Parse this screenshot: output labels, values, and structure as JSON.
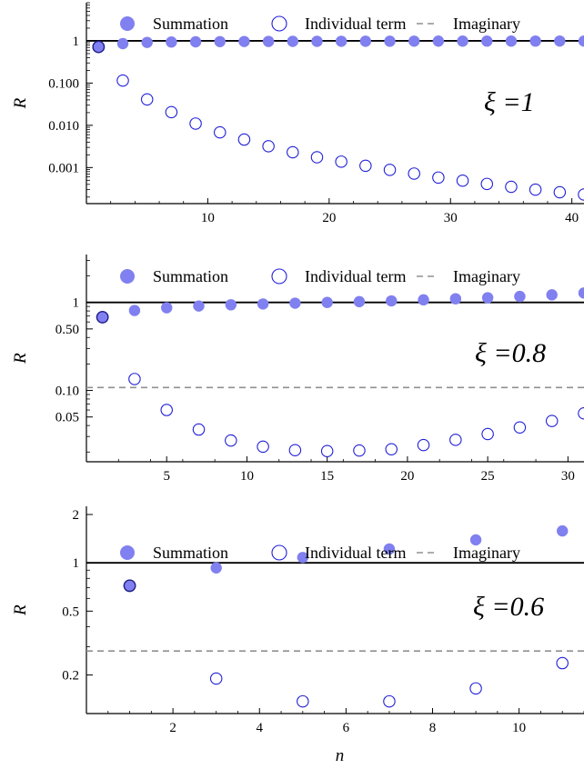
{
  "chart_data": [
    {
      "type": "scatter",
      "title": "",
      "annotation": "ξ =1",
      "xlabel": "",
      "ylabel": "R",
      "yscale": "log",
      "xlim": [
        0,
        41
      ],
      "ylim": [
        0.00014,
        8
      ],
      "x_ticks": [
        10,
        20,
        30,
        40
      ],
      "y_ticks": [
        {
          "value": 1,
          "label": "1"
        },
        {
          "value": 0.1,
          "label": "0.100"
        },
        {
          "value": 0.01,
          "label": "0.010"
        },
        {
          "value": 0.001,
          "label": "0.001"
        }
      ],
      "legend": {
        "position": "top",
        "entries": [
          {
            "label": "Summation",
            "marker": "filled-circle"
          },
          {
            "label": "Individual term",
            "marker": "open-circle"
          },
          {
            "label": "Imaginary",
            "marker": "dashed-line"
          }
        ]
      },
      "reference_lines": [
        {
          "name": "unity",
          "y": 1,
          "style": "solid"
        }
      ],
      "series": [
        {
          "name": "Summation",
          "marker": "filled",
          "x": [
            1,
            3,
            5,
            7,
            9,
            11,
            13,
            15,
            17,
            19,
            21,
            23,
            25,
            27,
            29,
            31,
            33,
            35,
            37,
            39,
            41
          ],
          "y": [
            0.72,
            0.86,
            0.92,
            0.94,
            0.95,
            0.96,
            0.965,
            0.97,
            0.973,
            0.976,
            0.978,
            0.98,
            0.982,
            0.984,
            0.985,
            0.986,
            0.987,
            0.988,
            0.989,
            0.99,
            0.99
          ]
        },
        {
          "name": "Individual term",
          "marker": "open",
          "x": [
            1,
            3,
            5,
            7,
            9,
            11,
            13,
            15,
            17,
            19,
            21,
            23,
            25,
            27,
            29,
            31,
            33,
            35,
            37,
            39,
            41
          ],
          "y": [
            0.72,
            0.115,
            0.041,
            0.0205,
            0.011,
            0.0068,
            0.0046,
            0.0032,
            0.0023,
            0.00175,
            0.00138,
            0.0011,
            0.00088,
            0.00072,
            0.00058,
            0.00049,
            0.00041,
            0.00035,
            0.0003,
            0.00026,
            0.00023
          ]
        }
      ]
    },
    {
      "type": "scatter",
      "title": "",
      "annotation": "ξ =0.8",
      "xlabel": "",
      "ylabel": "R",
      "yscale": "log",
      "xlim": [
        0,
        31
      ],
      "ylim": [
        0.0155,
        3.5
      ],
      "x_ticks": [
        5,
        10,
        15,
        20,
        25,
        30
      ],
      "y_ticks": [
        {
          "value": 1,
          "label": "1"
        },
        {
          "value": 0.5,
          "label": "0.50"
        },
        {
          "value": 0.1,
          "label": "0.10"
        },
        {
          "value": 0.05,
          "label": "0.05"
        }
      ],
      "legend": {
        "position": "top",
        "entries": [
          {
            "label": "Summation",
            "marker": "filled-circle"
          },
          {
            "label": "Individual term",
            "marker": "open-circle"
          },
          {
            "label": "Imaginary",
            "marker": "dashed-line"
          }
        ]
      },
      "reference_lines": [
        {
          "name": "unity",
          "y": 1,
          "style": "solid"
        },
        {
          "name": "Imaginary",
          "y": 0.108,
          "style": "dashed"
        }
      ],
      "series": [
        {
          "name": "Summation",
          "marker": "filled",
          "x": [
            1,
            3,
            5,
            7,
            9,
            11,
            13,
            15,
            17,
            19,
            21,
            23,
            25,
            27,
            29,
            31
          ],
          "y": [
            0.68,
            0.81,
            0.87,
            0.91,
            0.94,
            0.96,
            0.98,
            1.0,
            1.02,
            1.04,
            1.07,
            1.1,
            1.13,
            1.17,
            1.22,
            1.28
          ]
        },
        {
          "name": "Individual term",
          "marker": "open",
          "x": [
            1,
            3,
            5,
            7,
            9,
            11,
            13,
            15,
            17,
            19,
            21,
            23,
            25,
            27,
            29,
            31
          ],
          "y": [
            0.68,
            0.135,
            0.06,
            0.036,
            0.027,
            0.023,
            0.021,
            0.0205,
            0.0208,
            0.0215,
            0.024,
            0.0275,
            0.032,
            0.038,
            0.045,
            0.055
          ]
        }
      ]
    },
    {
      "type": "scatter",
      "title": "",
      "annotation": "ξ =0.6",
      "xlabel": "n",
      "ylabel": "R",
      "yscale": "log",
      "xlim": [
        0,
        11.5
      ],
      "ylim": [
        0.115,
        2.25
      ],
      "x_ticks": [
        2,
        4,
        6,
        8,
        10
      ],
      "y_ticks": [
        {
          "value": 2,
          "label": "2"
        },
        {
          "value": 1,
          "label": "1"
        },
        {
          "value": 0.5,
          "label": "0.5"
        },
        {
          "value": 0.2,
          "label": "0.2"
        }
      ],
      "legend": {
        "position": "top",
        "entries": [
          {
            "label": "Summation",
            "marker": "filled-circle"
          },
          {
            "label": "Individual term",
            "marker": "open-circle"
          },
          {
            "label": "Imaginary",
            "marker": "dashed-line"
          }
        ]
      },
      "reference_lines": [
        {
          "name": "unity",
          "y": 1,
          "style": "solid"
        },
        {
          "name": "Imaginary",
          "y": 0.282,
          "style": "dashed"
        }
      ],
      "series": [
        {
          "name": "Summation",
          "marker": "filled",
          "x": [
            1,
            3,
            5,
            7,
            9,
            11
          ],
          "y": [
            0.72,
            0.93,
            1.08,
            1.22,
            1.39,
            1.58
          ]
        },
        {
          "name": "Individual term",
          "marker": "open",
          "x": [
            1,
            3,
            5,
            7,
            9,
            11
          ],
          "y": [
            0.72,
            0.19,
            0.137,
            0.137,
            0.165,
            0.237
          ]
        }
      ]
    }
  ],
  "colors": {
    "summation_fill": "#8080f0",
    "open_marker_stroke": "#2020d8",
    "first_point_stroke": "#20208a",
    "imaginary_line": "#909090",
    "axis": "#000000"
  }
}
